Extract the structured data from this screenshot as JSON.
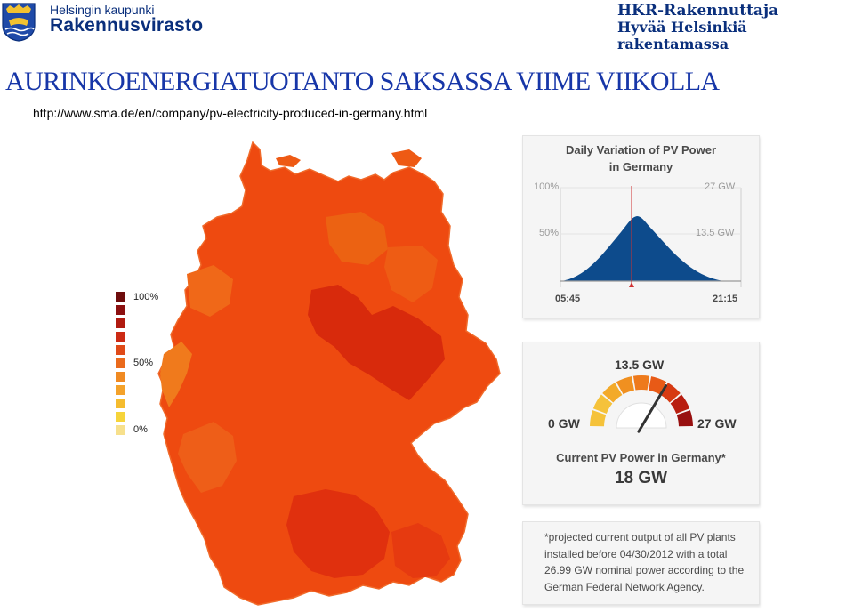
{
  "header": {
    "org_small": "Helsingin kaupunki",
    "org_big": "Rakennusvirasto",
    "hkr_title": "HKR-Rakennuttaja",
    "hkr_sub": "Hyvää Helsinkiä rakentamassa",
    "brand_color": "#0a2f7c"
  },
  "slide": {
    "title": "AURINKOENERGIATUOTANTO SAKSASSA VIIME VIIKOLLA",
    "source_url": "http://www.sma.de/en/company/pv-electricity-produced-in-germany.html",
    "title_color": "#1736a8"
  },
  "legend": {
    "top_label": "100%",
    "mid_label": "50%",
    "bottom_label": "0%",
    "swatches": [
      "#6e0d0d",
      "#8c1010",
      "#b01a10",
      "#cc2a14",
      "#e04a18",
      "#ea6a1c",
      "#f08a22",
      "#f4a22a",
      "#f5bc2e",
      "#f6d43a",
      "#f7e08c"
    ]
  },
  "daily_panel": {
    "title_line1": "Daily Variation of PV Power",
    "title_line2": "in Germany",
    "y_top_left": "100%",
    "y_top_right": "27 GW",
    "y_mid_left": "50%",
    "y_mid_right": "13.5 GW",
    "x_start": "05:45",
    "x_end": "21:15",
    "fill_color": "#0d4b8c"
  },
  "gauge_panel": {
    "top_value": "13.5 GW",
    "min_label": "0 GW",
    "max_label": "27 GW",
    "caption": "Current PV Power in Germany*",
    "current_value": "18 GW",
    "needle_fraction": 0.67
  },
  "note_panel": {
    "text": "*projected current output of all PV plants installed before 04/30/2012 with a total 26.99 GW nominal power according to the German Federal Network Agency."
  }
}
